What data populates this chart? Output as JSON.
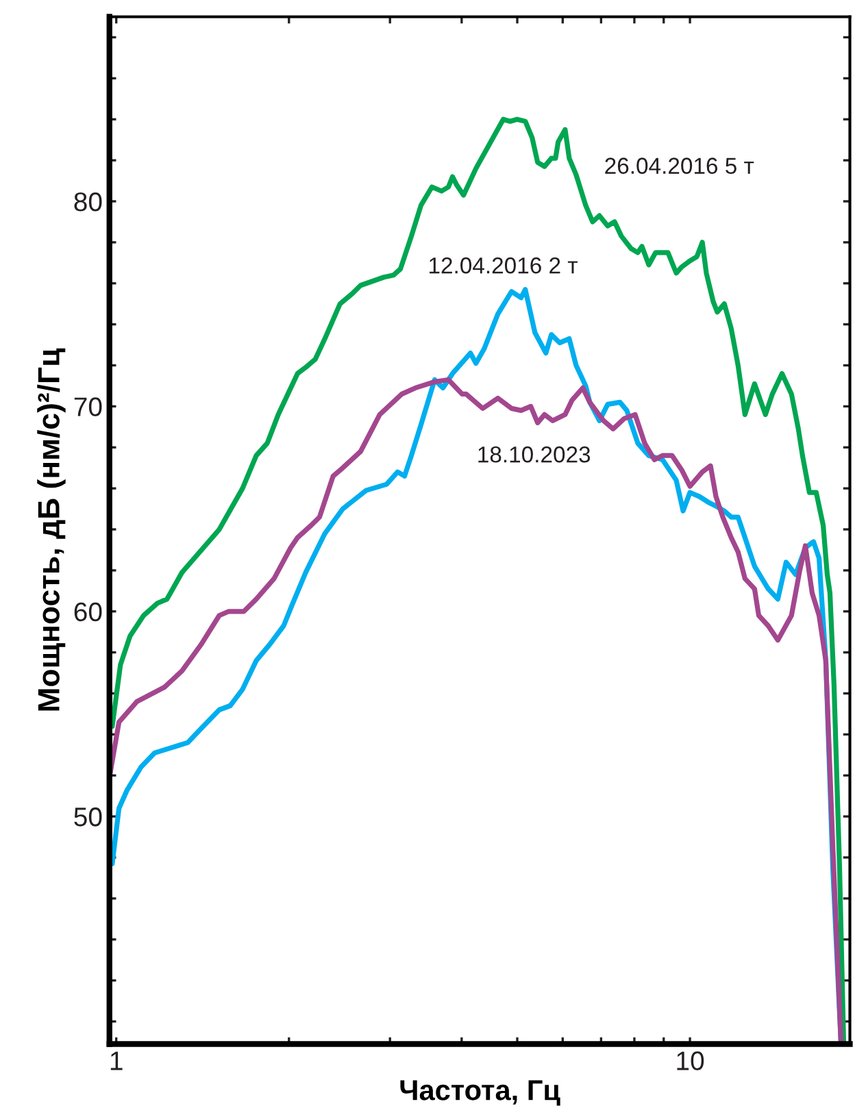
{
  "chart_data": {
    "type": "line",
    "xlabel": "Частота, Гц",
    "ylabel": "Мощность, дБ (нм/с)²/Гц",
    "log": "x",
    "grid": false,
    "legend": false,
    "xlim": [
      0.973,
      19.0
    ],
    "ylim": [
      38.9,
      89.0
    ],
    "xticks": [
      1,
      {
        "value": 2,
        "label": null
      },
      {
        "value": 3,
        "label": null
      },
      {
        "value": 4,
        "label": null
      },
      {
        "value": 5,
        "label": null
      },
      {
        "value": 6,
        "label": null
      },
      {
        "value": 7,
        "label": null
      },
      {
        "value": 8,
        "label": null
      },
      {
        "value": 9,
        "label": null
      },
      10
    ],
    "yticks": [
      {
        "value": 40,
        "label": null
      },
      {
        "value": 42,
        "label": null
      },
      {
        "value": 44,
        "label": null
      },
      {
        "value": 46,
        "label": null
      },
      {
        "value": 48,
        "label": null
      },
      50,
      {
        "value": 52,
        "label": null
      },
      {
        "value": 54,
        "label": null
      },
      {
        "value": 56,
        "label": null
      },
      {
        "value": 58,
        "label": null
      },
      60,
      {
        "value": 62,
        "label": null
      },
      {
        "value": 64,
        "label": null
      },
      {
        "value": 66,
        "label": null
      },
      {
        "value": 68,
        "label": null
      },
      70,
      {
        "value": 72,
        "label": null
      },
      {
        "value": 74,
        "label": null
      },
      {
        "value": 76,
        "label": null
      },
      {
        "value": 78,
        "label": null
      },
      80,
      {
        "value": 82,
        "label": null
      },
      {
        "value": 84,
        "label": null
      },
      {
        "value": 86,
        "label": null
      },
      {
        "value": 88,
        "label": null
      }
    ],
    "series": [
      {
        "name": "26.04.2016 5 т",
        "color": "#00a651",
        "x": [
          0.984,
          1.017,
          1.057,
          1.116,
          1.18,
          1.226,
          1.302,
          1.512,
          1.66,
          1.754,
          1.833,
          1.916,
          2.07,
          2.139,
          2.223,
          2.31,
          2.455,
          2.579,
          2.666,
          2.928,
          3.043,
          3.128,
          3.269,
          3.397,
          3.55,
          3.69,
          3.793,
          3.856,
          3.921,
          4.03,
          4.236,
          4.474,
          4.727,
          4.86,
          4.995,
          5.164,
          5.308,
          5.426,
          5.578,
          5.734,
          5.83,
          5.893,
          6.059,
          6.16,
          6.332,
          6.581,
          6.765,
          6.954,
          7.189,
          7.389,
          7.594,
          7.892,
          8.112,
          8.247,
          8.477,
          8.713,
          9.156,
          9.465,
          9.674,
          10.0,
          10.28,
          10.51,
          10.68,
          10.98,
          11.16,
          11.48,
          11.8,
          12.13,
          12.47,
          12.96,
          13.54,
          13.92,
          14.47,
          15.03,
          15.45,
          15.71,
          16.15,
          16.6,
          17.07,
          17.35,
          17.54,
          17.83,
          18.23,
          18.53
        ],
        "values": [
          54.4,
          57.4,
          58.8,
          59.8,
          60.4,
          60.6,
          61.9,
          64.0,
          66.0,
          67.6,
          68.2,
          69.6,
          71.6,
          71.9,
          72.3,
          73.3,
          75.0,
          75.5,
          75.9,
          76.3,
          76.4,
          76.7,
          78.3,
          79.8,
          80.7,
          80.5,
          80.7,
          81.2,
          80.8,
          80.3,
          81.6,
          82.8,
          84.0,
          83.9,
          84.0,
          83.9,
          83.1,
          81.9,
          81.7,
          82.1,
          82.1,
          82.9,
          83.5,
          82.1,
          81.3,
          79.8,
          79.0,
          79.3,
          78.8,
          79.0,
          78.3,
          77.7,
          77.5,
          77.8,
          76.9,
          77.5,
          77.5,
          76.5,
          76.8,
          77.1,
          77.3,
          78.0,
          76.5,
          75.1,
          74.6,
          75.0,
          73.8,
          72.0,
          69.6,
          71.1,
          69.6,
          70.6,
          71.6,
          70.6,
          68.9,
          67.6,
          65.8,
          65.8,
          64.2,
          61.8,
          60.9,
          56.4,
          47.5,
          39.0
        ]
      },
      {
        "name": "12.04.2016 2 т",
        "color": "#00aeef",
        "x": [
          0.984,
          1.011,
          1.045,
          1.104,
          1.167,
          1.332,
          1.407,
          1.512,
          1.58,
          1.66,
          1.754,
          1.853,
          1.958,
          2.024,
          2.139,
          2.31,
          2.482,
          2.726,
          2.96,
          3.093,
          3.181,
          3.269,
          3.397,
          3.589,
          3.71,
          3.856,
          4.143,
          4.236,
          4.377,
          4.625,
          4.887,
          5.078,
          5.164,
          5.367,
          5.609,
          5.734,
          5.927,
          6.16,
          6.332,
          6.581,
          6.689,
          6.954,
          7.189,
          7.551,
          7.762,
          8.112,
          8.477,
          8.959,
          9.465,
          9.728,
          10.0,
          10.39,
          10.8,
          11.16,
          11.48,
          11.8,
          12.13,
          12.47,
          12.96,
          13.69,
          14.23,
          14.71,
          15.28,
          15.89,
          16.42,
          16.79,
          17.25,
          17.74,
          18.33
        ],
        "values": [
          47.7,
          50.4,
          51.3,
          52.4,
          53.1,
          53.6,
          54.3,
          55.2,
          55.4,
          56.2,
          57.6,
          58.4,
          59.3,
          60.3,
          61.9,
          63.8,
          65.0,
          65.9,
          66.2,
          66.8,
          66.6,
          67.6,
          69.1,
          71.3,
          70.9,
          71.6,
          72.6,
          72.1,
          72.8,
          74.5,
          75.6,
          75.3,
          75.7,
          73.6,
          72.6,
          73.5,
          73.1,
          73.3,
          72.0,
          71.0,
          70.2,
          69.3,
          70.1,
          70.2,
          69.8,
          68.2,
          67.6,
          67.4,
          66.4,
          64.9,
          65.8,
          65.6,
          65.3,
          65.1,
          64.9,
          64.6,
          64.6,
          63.6,
          62.2,
          61.1,
          60.6,
          62.4,
          61.8,
          63.1,
          63.4,
          62.6,
          57.6,
          47.5,
          39.0
        ]
      },
      {
        "name": "18.10.2023",
        "color": "#a3478f",
        "x": [
          0.973,
          1.011,
          1.086,
          1.213,
          1.302,
          1.407,
          1.512,
          1.571,
          1.669,
          1.754,
          1.884,
          2.013,
          2.07,
          2.187,
          2.261,
          2.388,
          2.482,
          2.666,
          2.879,
          3.146,
          3.323,
          3.589,
          3.793,
          4.008,
          4.074,
          4.353,
          4.625,
          4.887,
          5.078,
          5.279,
          5.426,
          5.578,
          5.766,
          6.059,
          6.229,
          6.507,
          6.689,
          7.07,
          7.345,
          7.677,
          8.025,
          8.34,
          8.669,
          8.959,
          9.309,
          9.674,
          10.0,
          10.51,
          10.86,
          11.1,
          11.41,
          11.8,
          12.13,
          12.47,
          12.96,
          13.18,
          13.69,
          14.23,
          15.03,
          15.54,
          15.89,
          16.33,
          16.79,
          17.25,
          17.74,
          18.33
        ],
        "values": [
          51.9,
          54.6,
          55.6,
          56.3,
          57.1,
          58.4,
          59.8,
          60.0,
          60.0,
          60.6,
          61.6,
          63.1,
          63.6,
          64.2,
          64.6,
          66.6,
          67.0,
          67.8,
          69.6,
          70.6,
          70.9,
          71.2,
          71.3,
          70.6,
          70.6,
          69.9,
          70.4,
          69.9,
          69.8,
          70.0,
          69.2,
          69.6,
          69.3,
          69.6,
          70.3,
          70.9,
          70.2,
          69.3,
          68.9,
          69.4,
          69.6,
          68.2,
          67.4,
          67.6,
          67.6,
          66.9,
          66.1,
          66.8,
          67.1,
          65.6,
          64.6,
          63.6,
          62.9,
          61.6,
          61.1,
          59.8,
          59.3,
          58.6,
          59.8,
          62.0,
          63.2,
          60.9,
          59.8,
          57.6,
          48.6,
          39.0
        ]
      }
    ]
  }
}
